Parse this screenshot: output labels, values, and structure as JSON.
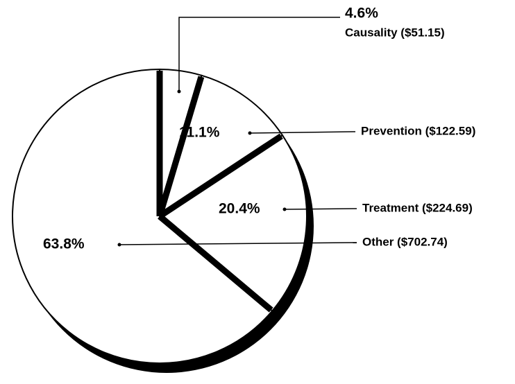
{
  "chart_data": {
    "type": "pie",
    "categories": [
      "Causality ($51.15)",
      "Prevention ($122.59)",
      "Treatment ($224.69)",
      "Other ($702.74)"
    ],
    "values": [
      4.6,
      11.1,
      20.4,
      63.8
    ],
    "value_labels": [
      "4.6%",
      "11.1%",
      "20.4%",
      "63.8%"
    ],
    "color": "#ffffff"
  }
}
